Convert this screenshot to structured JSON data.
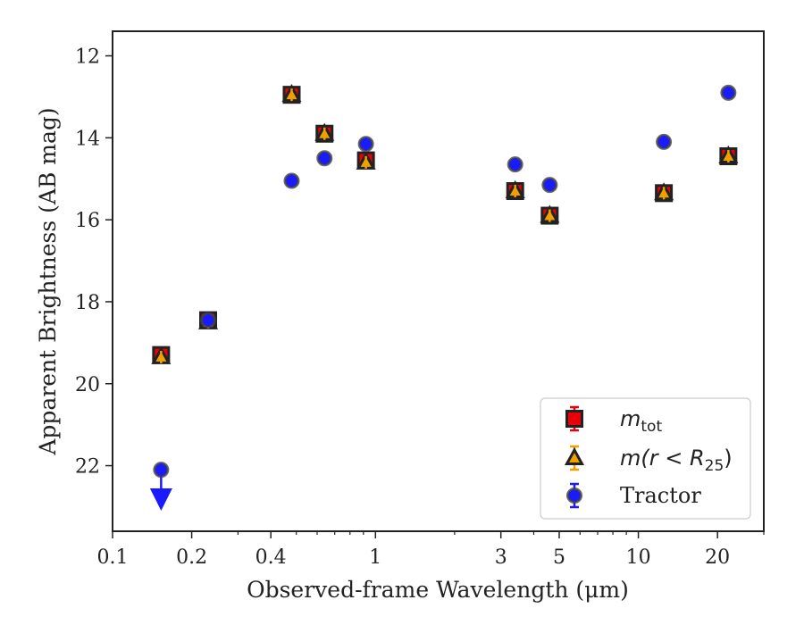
{
  "chart_data": {
    "type": "scatter",
    "title": "",
    "xlabel": "Observed-frame Wavelength (μm)",
    "ylabel": "Apparent Brightness (AB mag)",
    "xscale": "log",
    "xlim": [
      0.1,
      30
    ],
    "ylim": [
      23.6,
      11.4
    ],
    "y_inverted": true,
    "x_ticks": [
      0.1,
      0.2,
      0.4,
      1,
      3,
      5,
      10,
      20
    ],
    "x_tick_labels": [
      "0.1",
      "0.2",
      "0.4",
      "1",
      "3",
      "5",
      "10",
      "20"
    ],
    "y_ticks": [
      12,
      14,
      16,
      18,
      20,
      22
    ],
    "y_tick_labels": [
      "12",
      "14",
      "16",
      "18",
      "20",
      "22"
    ],
    "grid": false,
    "legend_position": "lower right",
    "series": [
      {
        "name": "m_tot",
        "legend_main": "m",
        "legend_sub": "tot",
        "marker": "square",
        "color": "#e8000b",
        "edge": "#222222",
        "x": [
          0.153,
          0.231,
          0.48,
          0.64,
          0.92,
          3.4,
          4.6,
          12.5,
          22
        ],
        "y": [
          19.3,
          18.45,
          12.95,
          13.9,
          14.55,
          15.3,
          15.9,
          15.35,
          14.45
        ]
      },
      {
        "name": "m(r < R25)",
        "legend_main": "m(r < R",
        "legend_sub": "25",
        "legend_tail": ")",
        "marker": "triangle",
        "color": "#f0a000",
        "edge": "#222222",
        "x": [
          0.153,
          0.231,
          0.48,
          0.64,
          0.92,
          3.4,
          4.6,
          12.5,
          22
        ],
        "y": [
          19.35,
          18.5,
          12.95,
          13.9,
          14.6,
          15.3,
          15.9,
          15.35,
          14.45
        ]
      },
      {
        "name": "Tractor",
        "marker": "circle",
        "color": "#1a1aff",
        "edge": "#444444",
        "x": [
          0.153,
          0.231,
          0.48,
          0.64,
          0.92,
          3.4,
          4.6,
          12.5,
          22
        ],
        "y": [
          22.1,
          18.45,
          15.05,
          14.5,
          14.15,
          14.65,
          15.15,
          14.1,
          12.9
        ],
        "upper_limit_index": 0,
        "upper_limit_to": 23.0
      }
    ]
  }
}
